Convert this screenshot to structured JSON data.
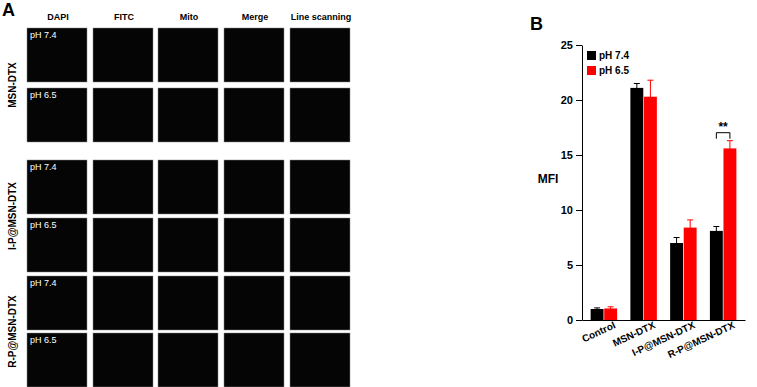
{
  "panel_labels": [
    "A",
    "B"
  ],
  "panel_a": {
    "columns": [
      "DAPI",
      "FITC",
      "Mito",
      "Merge",
      "Line scanning"
    ],
    "groups": [
      {
        "name": "MSN-DTX",
        "conditions": [
          "pH 7.4",
          "pH 6.5"
        ]
      },
      {
        "name": "I-P@MSN-DTX",
        "conditions": [
          "pH 7.4",
          "pH 6.5"
        ]
      },
      {
        "name": "R-P@MSN-DTX",
        "conditions": [
          "pH 7.4",
          "pH 6.5"
        ]
      }
    ]
  },
  "chart_data": {
    "type": "bar",
    "y_label": "MFI",
    "categories": [
      "Control",
      "MSN-DTX",
      "I-P@MSN-DTX",
      "R-P@MSN-DTX"
    ],
    "series": [
      {
        "name": "pH 7.4",
        "color": "#000000",
        "values": [
          1.0,
          21.1,
          7.0,
          8.1
        ],
        "errors": [
          0.1,
          0.4,
          0.5,
          0.4
        ]
      },
      {
        "name": "pH 6.5",
        "color": "#ff0000",
        "values": [
          1.05,
          20.3,
          8.4,
          15.6
        ],
        "errors": [
          0.15,
          1.5,
          0.7,
          0.7
        ]
      }
    ],
    "ylim": [
      0,
      25
    ],
    "yticks": [
      0,
      5,
      10,
      15,
      20,
      25
    ],
    "grid": false,
    "legend": "upper left",
    "annotations": [
      {
        "text": "**",
        "category": "R-P@MSN-DTX"
      }
    ]
  }
}
